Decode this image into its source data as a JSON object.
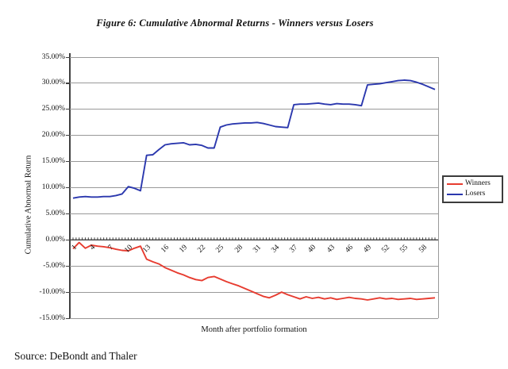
{
  "title": "Figure 6: Cumulative Abnormal Returns - Winners versus Losers",
  "source_note": "Source: DeBondt and Thaler",
  "colors": {
    "winners_line": "#e73c30",
    "losers_line": "#2b38ae",
    "gridline": "#999999",
    "axis": "#404040"
  },
  "legend": {
    "items": [
      {
        "label": "Winners",
        "color": "#e73c30"
      },
      {
        "label": "Losers",
        "color": "#2b38ae"
      }
    ]
  },
  "chart_data": {
    "type": "line",
    "title": "Figure 6: Cumulative Abnormal Returns - Winners versus Losers",
    "xlabel": "Month after portfolio formation",
    "ylabel": "Cumulative Abnormal Return",
    "ylim": [
      -15,
      35
    ],
    "ytick_step": 5,
    "ytick_labels": [
      "35.00%",
      "30.00%",
      "25.00%",
      "20.00%",
      "15.00%",
      "10.00%",
      "5.00%",
      "0.00%",
      "-5.00%",
      "-10.00%",
      "-15.00%"
    ],
    "x_months": [
      1,
      2,
      3,
      4,
      5,
      6,
      7,
      8,
      9,
      10,
      11,
      12,
      13,
      14,
      15,
      16,
      17,
      18,
      19,
      20,
      21,
      22,
      23,
      24,
      25,
      26,
      27,
      28,
      29,
      30,
      31,
      32,
      33,
      34,
      35,
      36,
      37,
      38,
      39,
      40,
      41,
      42,
      43,
      44,
      45,
      46,
      47,
      48,
      49,
      50,
      51,
      52,
      53,
      54,
      55,
      56,
      57,
      58,
      59,
      60
    ],
    "xtick_labels": [
      "1",
      "4",
      "7",
      "10",
      "13",
      "16",
      "19",
      "22",
      "25",
      "28",
      "31",
      "34",
      "37",
      "40",
      "43",
      "46",
      "49",
      "52",
      "55",
      "58"
    ],
    "grid": true,
    "legend_position": "right",
    "series": [
      {
        "name": "Winners",
        "color": "#e73c30",
        "values": [
          -1.7,
          -0.5,
          -1.6,
          -1.0,
          -1.2,
          -1.3,
          -1.5,
          -1.8,
          -2.0,
          -2.1,
          -1.6,
          -1.2,
          -3.7,
          -4.2,
          -4.6,
          -5.3,
          -5.8,
          -6.3,
          -6.7,
          -7.2,
          -7.6,
          -7.8,
          -7.2,
          -7.0,
          -7.5,
          -8.0,
          -8.4,
          -8.8,
          -9.3,
          -9.8,
          -10.3,
          -10.8,
          -11.1,
          -10.6,
          -10.0,
          -10.5,
          -10.9,
          -11.3,
          -10.9,
          -11.2,
          -11.0,
          -11.3,
          -11.1,
          -11.4,
          -11.2,
          -11.0,
          -11.2,
          -11.3,
          -11.5,
          -11.3,
          -11.1,
          -11.3,
          -11.2,
          -11.4,
          -11.3,
          -11.2,
          -11.4,
          -11.3,
          -11.2,
          -11.1
        ]
      },
      {
        "name": "Losers",
        "color": "#2b38ae",
        "values": [
          8.0,
          8.2,
          8.3,
          8.2,
          8.2,
          8.3,
          8.3,
          8.5,
          8.8,
          10.2,
          9.9,
          9.4,
          16.2,
          16.3,
          17.3,
          18.2,
          18.4,
          18.5,
          18.6,
          18.2,
          18.3,
          18.1,
          17.6,
          17.6,
          21.6,
          22.0,
          22.2,
          22.3,
          22.4,
          22.4,
          22.5,
          22.3,
          22.0,
          21.7,
          21.6,
          21.5,
          25.9,
          26.0,
          26.0,
          26.1,
          26.2,
          26.0,
          25.9,
          26.1,
          26.0,
          26.0,
          25.9,
          25.7,
          29.7,
          29.8,
          29.9,
          30.1,
          30.3,
          30.5,
          30.6,
          30.5,
          30.2,
          29.8,
          29.3,
          28.8
        ]
      }
    ]
  }
}
